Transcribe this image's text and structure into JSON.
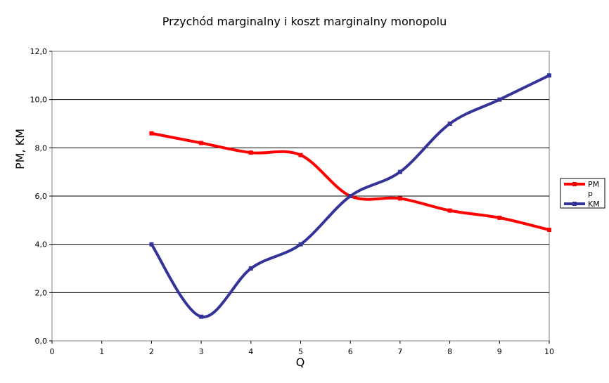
{
  "chart_data": {
    "type": "line",
    "title": "Przychód marginalny i koszt marginalny monopolu",
    "xlabel": "Q",
    "ylabel": "PM, KM",
    "xlim": [
      0,
      10
    ],
    "ylim": [
      0,
      12
    ],
    "x_ticks": [
      "0",
      "1",
      "2",
      "3",
      "4",
      "5",
      "6",
      "7",
      "8",
      "9",
      "10"
    ],
    "y_ticks": [
      "0,0",
      "2,0",
      "4,0",
      "6,0",
      "8,0",
      "10,0",
      "12,0"
    ],
    "grid": "horizontal",
    "legend_position": "right",
    "series": [
      {
        "name": "PM",
        "color": "#ff0000",
        "x": [
          2,
          3,
          4,
          5,
          6,
          7,
          8,
          9,
          10
        ],
        "values": [
          8.6,
          8.2,
          7.8,
          7.7,
          6.0,
          5.9,
          5.4,
          5.1,
          4.6
        ]
      },
      {
        "name": "p",
        "color": "#ffffff",
        "x": [],
        "values": []
      },
      {
        "name": "KM",
        "color": "#33339a",
        "x": [
          2,
          3,
          4,
          5,
          6,
          7,
          8,
          9,
          10
        ],
        "values": [
          4.0,
          1.0,
          3.0,
          4.0,
          6.0,
          7.0,
          9.0,
          10.0,
          11.0
        ]
      }
    ]
  }
}
